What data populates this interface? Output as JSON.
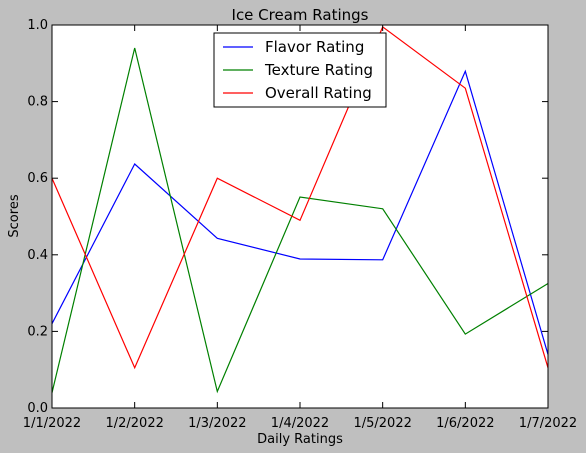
{
  "chart_data": {
    "type": "line",
    "title": "Ice Cream Ratings",
    "xlabel": "Daily Ratings",
    "ylabel": "Scores",
    "categories": [
      "1/1/2022",
      "1/2/2022",
      "1/3/2022",
      "1/4/2022",
      "1/5/2022",
      "1/6/2022",
      "1/7/2022"
    ],
    "ylim": [
      0,
      1
    ],
    "yticks": [
      "0.0",
      "0.2",
      "0.4",
      "0.6",
      "0.8",
      "1.0"
    ],
    "grid": false,
    "legend_position": "top-center",
    "series": [
      {
        "name": "Flavor Rating",
        "color": "#0000ff",
        "values": [
          0.22,
          0.637,
          0.443,
          0.389,
          0.387,
          0.879,
          0.14
        ]
      },
      {
        "name": "Texture Rating",
        "color": "#008000",
        "values": [
          0.04,
          0.94,
          0.043,
          0.551,
          0.52,
          0.193,
          0.325
        ]
      },
      {
        "name": "Overall Rating",
        "color": "#ff0000",
        "values": [
          0.6,
          0.105,
          0.6,
          0.49,
          0.995,
          0.835,
          0.105
        ]
      }
    ]
  }
}
